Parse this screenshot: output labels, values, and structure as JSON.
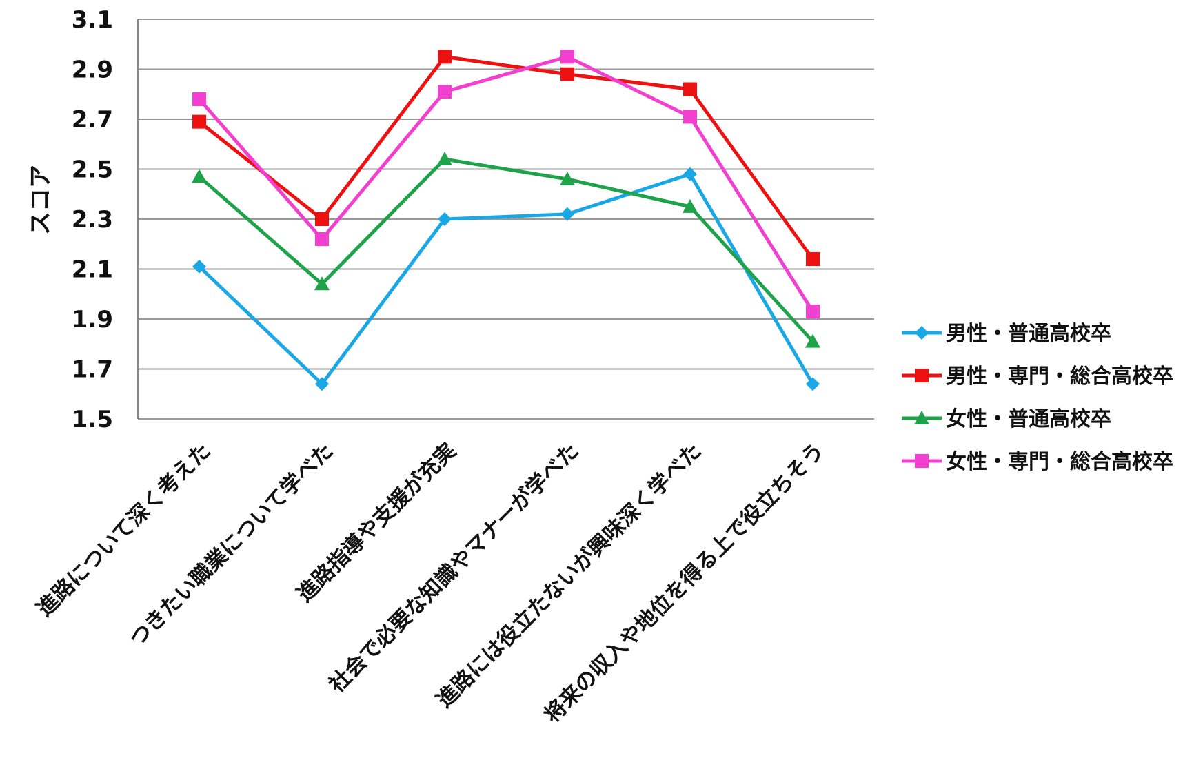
{
  "chart_data": {
    "type": "line",
    "ylabel": "スコア",
    "xlabel": "",
    "title": "",
    "ylim": [
      1.5,
      3.1
    ],
    "yticks": [
      "1.5",
      "1.7",
      "1.9",
      "2.1",
      "2.3",
      "2.5",
      "2.7",
      "2.9",
      "3.1"
    ],
    "grid": true,
    "legend_position": "right",
    "categories": [
      "進路について深く考えた",
      "つきたい職業について学べた",
      "進路指導や支援が充実",
      "社会で必要な知識やマナーが学べた",
      "進路には役立たないが興味深く学べた",
      "将来の収入や地位を得る上で役立ちそう"
    ],
    "series": [
      {
        "name": "男性・普通高校卒",
        "color": "#1aa7e6",
        "marker": "diamond",
        "values": [
          2.11,
          1.64,
          2.3,
          2.32,
          2.48,
          1.64
        ]
      },
      {
        "name": "男性・専門・総合高校卒",
        "color": "#ee1111",
        "marker": "square",
        "values": [
          2.69,
          2.3,
          2.95,
          2.88,
          2.82,
          2.14
        ]
      },
      {
        "name": "女性・普通高校卒",
        "color": "#1ea34a",
        "marker": "triangle",
        "values": [
          2.47,
          2.04,
          2.54,
          2.46,
          2.35,
          1.81
        ]
      },
      {
        "name": "女性・専門・総合高校卒",
        "color": "#f23fcf",
        "marker": "square",
        "values": [
          2.78,
          2.22,
          2.81,
          2.95,
          2.71,
          1.93
        ]
      }
    ],
    "gridline_color": "#999999",
    "axis_color": "#888888"
  }
}
